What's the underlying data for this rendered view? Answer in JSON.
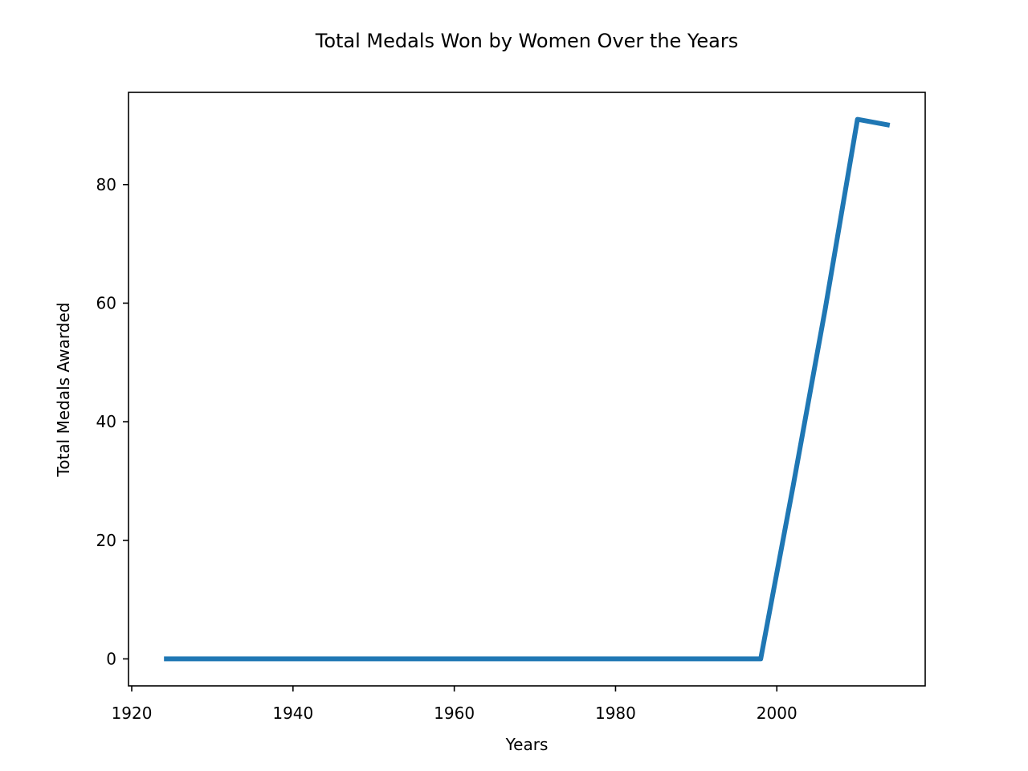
{
  "chart_data": {
    "type": "line",
    "title": "Total Medals Won by Women Over the Years",
    "xlabel": "Years",
    "ylabel": "Total Medals Awarded",
    "xlim": [
      1919.6,
      2018.4
    ],
    "ylim": [
      -4.55,
      95.55
    ],
    "x_ticks": [
      1920,
      1940,
      1960,
      1980,
      2000
    ],
    "y_ticks": [
      0,
      20,
      40,
      60,
      80
    ],
    "grid": false,
    "legend": "none",
    "series": [
      {
        "color": "#1f77b4",
        "x": [
          1924,
          1928,
          1932,
          1936,
          1948,
          1952,
          1956,
          1960,
          1964,
          1968,
          1972,
          1976,
          1980,
          1984,
          1988,
          1992,
          1994,
          1998,
          2002,
          2006,
          2010,
          2014
        ],
        "y": [
          0,
          0,
          0,
          0,
          0,
          0,
          0,
          0,
          0,
          0,
          0,
          0,
          0,
          0,
          0,
          0,
          0,
          0,
          29,
          59,
          91,
          90
        ]
      }
    ]
  }
}
